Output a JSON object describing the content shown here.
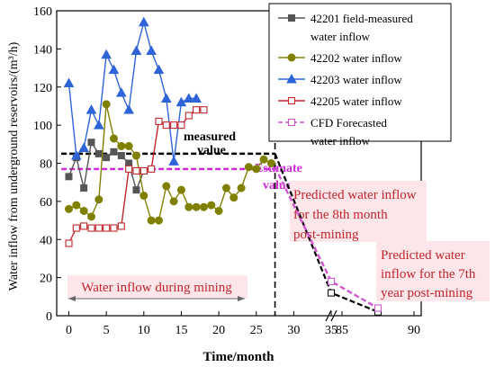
{
  "chart_data": {
    "type": "line",
    "title": "",
    "xlabel": "Time/month",
    "ylabel": "Water inflow from underground reservoirs/(m³/h)",
    "ylim": [
      0,
      160
    ],
    "x_ticks": [
      "0",
      "5",
      "10",
      "15",
      "20",
      "25",
      "30",
      "35",
      "85",
      "90"
    ],
    "y_ticks": [
      "0",
      "20",
      "40",
      "60",
      "80",
      "100",
      "120",
      "140",
      "160"
    ],
    "axis_break": "between 35 and 85",
    "legend_position": "top-right",
    "series": [
      {
        "name": "42201 field-measured water inflow",
        "color": "#555555",
        "marker": "square-filled",
        "x": [
          0,
          1,
          2,
          3,
          4,
          5,
          6,
          7,
          8,
          9,
          10
        ],
        "y": [
          73,
          83,
          67,
          91,
          85,
          83,
          86,
          84,
          80,
          66,
          76
        ]
      },
      {
        "name": "42202  water inflow",
        "color": "#808000",
        "marker": "circle-filled",
        "x": [
          0,
          1,
          2,
          3,
          4,
          5,
          6,
          7,
          8,
          9,
          10,
          11,
          12,
          13,
          14,
          15,
          16,
          17,
          18,
          19,
          20,
          21,
          22,
          23,
          24,
          25,
          26,
          27
        ],
        "y": [
          56,
          58,
          55,
          52,
          61,
          111,
          93,
          89,
          89,
          84,
          63,
          50,
          50,
          68,
          60,
          66,
          57,
          57,
          57,
          58,
          55,
          67,
          62,
          67,
          78,
          77,
          82,
          80
        ]
      },
      {
        "name": "42203  water inflow",
        "color": "#2f64d8",
        "marker": "triangle-filled",
        "x": [
          0,
          1,
          2,
          3,
          4,
          5,
          6,
          7,
          8,
          9,
          10,
          11,
          12,
          13,
          14,
          15,
          16,
          17
        ],
        "y": [
          122,
          84,
          88,
          108,
          100,
          137,
          129,
          117,
          108,
          139,
          154,
          139,
          129,
          114,
          81,
          112,
          114,
          114
        ]
      },
      {
        "name": "42205  water inflow",
        "color": "#c0262c",
        "marker": "square-open",
        "x": [
          0,
          1,
          2,
          3,
          4,
          5,
          6,
          7,
          8,
          9,
          10,
          11,
          12,
          13,
          14,
          15,
          16,
          17,
          18
        ],
        "y": [
          38,
          46,
          47,
          46,
          46,
          46,
          46,
          47,
          77,
          76,
          76,
          77,
          102,
          100,
          100,
          100,
          105,
          108,
          108
        ]
      },
      {
        "name": "CFD Forecasted water inflow",
        "color": "#ce57d0",
        "marker": "square-open",
        "dashed": true,
        "x": [
          27.5,
          35,
          87.5
        ],
        "y": [
          78,
          18,
          4
        ]
      }
    ],
    "reference_lines": [
      {
        "label": "measured value",
        "y": 85,
        "x_from": -1,
        "x_to": 27.5,
        "color": "#000000"
      },
      {
        "label": "Estimate value",
        "y": 77,
        "x_from": -1,
        "x_to": 27.5,
        "color": "#ce2bd6"
      }
    ],
    "measured_trend": {
      "color": "#000000",
      "x": [
        27.5,
        35,
        87.5
      ],
      "y": [
        85,
        12,
        2
      ]
    },
    "vertical_marker_x": 27.5,
    "annotations": [
      {
        "text": "Water inflow during mining",
        "x_from": 0,
        "x_to": 27.5,
        "y": 17
      },
      {
        "text_lines": [
          "Predicted water inflow",
          "for the 8th month",
          "post-mining"
        ],
        "near_x": 35,
        "near_y": 18
      },
      {
        "text_lines": [
          "Predicted water",
          "inflow for the 7th",
          "year post-mining"
        ],
        "near_x": 87.5,
        "near_y": 4
      }
    ]
  },
  "labels": {
    "measured_line1": "measured",
    "measured_line2": "value",
    "estimate_line1": "Estimate",
    "estimate_line2": "value",
    "legend_lines": [
      [
        "42201 field-measured",
        "water inflow"
      ],
      [
        "42202  water inflow"
      ],
      [
        "42203  water inflow"
      ],
      [
        "42205  water inflow"
      ],
      [
        "CFD Forecasted",
        "water inflow"
      ]
    ]
  }
}
